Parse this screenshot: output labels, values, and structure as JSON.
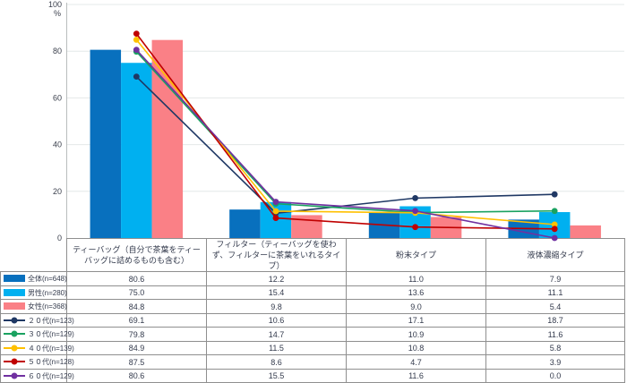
{
  "chart": {
    "axis_color": "#b9bdbd",
    "grid_color": "#e4e8e8",
    "text_color": "#3a3f4c"
  },
  "chart_data": {
    "type": "bar+line",
    "title": "",
    "xlabel": "",
    "ylabel": "%",
    "ylim": [
      0,
      100
    ],
    "yticks": [
      0,
      20,
      40,
      60,
      80,
      100
    ],
    "grid": true,
    "legend_position": "table-left-column",
    "categories": [
      "ティーバッグ（自分で茶葉をティーバッグに詰めるものも含む）",
      "フィルター（ティーバッグを使わず、フィルターに茶葉をいれるタイプ）",
      "粉末タイプ",
      "液体濃縮タイプ"
    ],
    "bar_series": [
      {
        "name": "全体(n=648)",
        "color": "#0870be",
        "values": [
          "80.6",
          "12.2",
          "11.0",
          "7.9"
        ]
      },
      {
        "name": "男性(n=280)",
        "color": "#00b0f0",
        "values": [
          "75.0",
          "15.4",
          "13.6",
          "11.1"
        ]
      },
      {
        "name": "女性(n=368)",
        "color": "#fa8086",
        "values": [
          "84.8",
          "9.8",
          "9.0",
          "5.4"
        ]
      }
    ],
    "line_series": [
      {
        "name": "２０代(n=123)",
        "color": "#1f3864",
        "values": [
          "69.1",
          "10.6",
          "17.1",
          "18.7"
        ]
      },
      {
        "name": "３０代(n=129)",
        "color": "#1aa260",
        "values": [
          "79.8",
          "14.7",
          "10.9",
          "11.6"
        ]
      },
      {
        "name": "４０代(n=139)",
        "color": "#ffc000",
        "values": [
          "84.9",
          "11.5",
          "10.8",
          "5.8"
        ]
      },
      {
        "name": "５０代(n=128)",
        "color": "#c00000",
        "values": [
          "87.5",
          "8.6",
          "4.7",
          "3.9"
        ]
      },
      {
        "name": "６０代(n=129)",
        "color": "#7030a0",
        "values": [
          "80.6",
          "15.5",
          "11.6",
          "0.0"
        ]
      }
    ]
  }
}
